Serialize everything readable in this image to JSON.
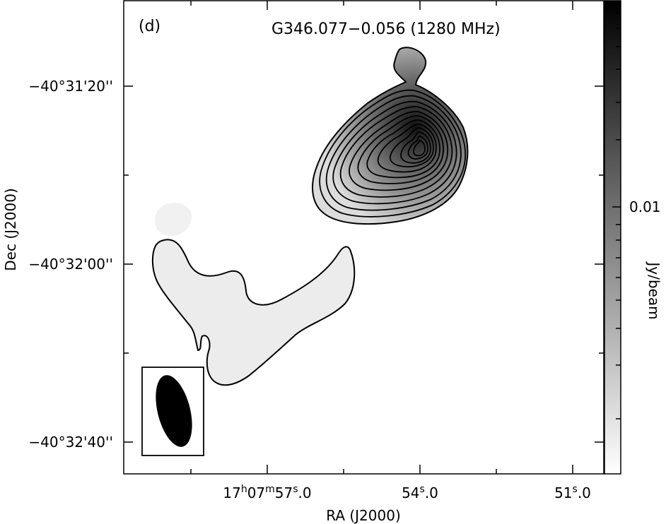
{
  "chart_data": {
    "type": "contour",
    "panel_label": "(d)",
    "title": "G346.077−0.056 (1280 MHz)",
    "xlabel": "RA (J2000)",
    "ylabel": "Dec (J2000)",
    "x_ticks": [
      {
        "label_hms": "17",
        "unit_h": "h",
        "label_m": "07",
        "unit_m": "m",
        "label_s": "57",
        "unit_s": "s",
        "label_frac": ".0",
        "ra_seconds": 57.0
      },
      {
        "label_s": "54",
        "unit_s": "s",
        "label_frac": ".0",
        "ra_seconds": 54.0
      },
      {
        "label_s": "51",
        "unit_s": "s",
        "label_frac": ".0",
        "ra_seconds": 51.0
      }
    ],
    "y_ticks": [
      "−40°31'20''",
      "−40°32'00''",
      "−40°32'40''"
    ],
    "colorbar": {
      "label": "Jy/beam",
      "tick_label": "0.01",
      "tick_value": 0.01,
      "colormap": "white-to-black grayscale"
    },
    "sources": [
      {
        "name": "compact bright source",
        "peak_ra_seconds": 54.0,
        "peak_dec": "−40°31'34''",
        "contour_levels_visible": 13
      },
      {
        "name": "extended diffuse emission",
        "contour_levels_visible": 1
      }
    ],
    "beam": {
      "shape": "ellipse",
      "orientation": "tilted, major axis roughly north-south"
    },
    "colors": {
      "contour": "#000000",
      "background": "#ffffff"
    }
  }
}
